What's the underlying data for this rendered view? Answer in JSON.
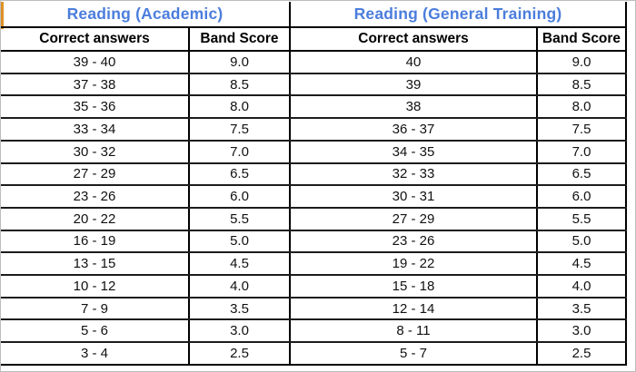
{
  "colors": {
    "title_blue": "#4B7DDC",
    "accent_orange": "#DE9126",
    "grid_line": "#000000",
    "row_line": "#1C1C1C",
    "frame_gray": "#BDBDC1",
    "background": "#FFFFFF"
  },
  "table": {
    "sections": [
      {
        "title": "Reading (Academic)",
        "columns": [
          "Correct answers",
          "Band Score"
        ],
        "rows": [
          [
            "39 - 40",
            "9.0"
          ],
          [
            "37 - 38",
            "8.5"
          ],
          [
            "35 - 36",
            "8.0"
          ],
          [
            "33 - 34",
            "7.5"
          ],
          [
            "30 - 32",
            "7.0"
          ],
          [
            "27 - 29",
            "6.5"
          ],
          [
            "23 - 26",
            "6.0"
          ],
          [
            "20 - 22",
            "5.5"
          ],
          [
            "16 - 19",
            "5.0"
          ],
          [
            "13 - 15",
            "4.5"
          ],
          [
            "10 - 12",
            "4.0"
          ],
          [
            "7 - 9",
            "3.5"
          ],
          [
            "5 - 6",
            "3.0"
          ],
          [
            "3 - 4",
            "2.5"
          ]
        ]
      },
      {
        "title": "Reading (General Training)",
        "columns": [
          "Correct answers",
          "Band Score"
        ],
        "rows": [
          [
            "40",
            "9.0"
          ],
          [
            "39",
            "8.5"
          ],
          [
            "38",
            "8.0"
          ],
          [
            "36 - 37",
            "7.5"
          ],
          [
            "34 - 35",
            "7.0"
          ],
          [
            "32 - 33",
            "6.5"
          ],
          [
            "30 - 31",
            "6.0"
          ],
          [
            "27 - 29",
            "5.5"
          ],
          [
            "23 - 26",
            "5.0"
          ],
          [
            "19 - 22",
            "4.5"
          ],
          [
            "15 - 18",
            "4.0"
          ],
          [
            "12 - 14",
            "3.5"
          ],
          [
            "8 - 11",
            "3.0"
          ],
          [
            "5 - 7",
            "2.5"
          ]
        ]
      }
    ]
  }
}
